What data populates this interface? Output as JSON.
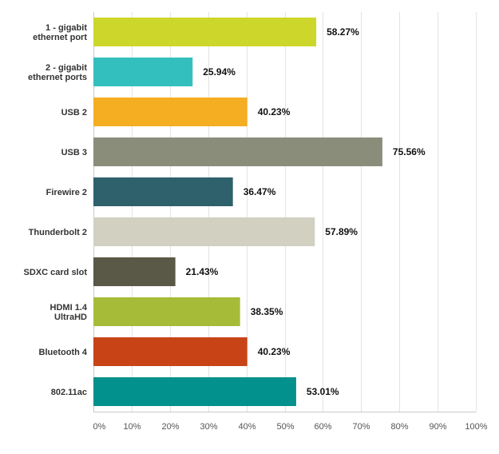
{
  "chart_data": {
    "type": "bar",
    "orientation": "horizontal",
    "title": "",
    "xlabel": "",
    "ylabel": "",
    "xlim": [
      0,
      100
    ],
    "grid": true,
    "value_suffix": "%",
    "ticks": [
      "0%",
      "10%",
      "20%",
      "30%",
      "40%",
      "50%",
      "60%",
      "70%",
      "80%",
      "90%",
      "100%"
    ],
    "categories": [
      [
        "1 - gigabit",
        "ethernet port"
      ],
      [
        "2 - gigabit",
        "ethernet ports"
      ],
      [
        "USB 2"
      ],
      [
        "USB 3"
      ],
      [
        "Firewire 2"
      ],
      [
        "Thunderbolt 2"
      ],
      [
        "SDXC card slot"
      ],
      [
        "HDMI 1.4",
        "UltraHD"
      ],
      [
        "Bluetooth 4"
      ],
      [
        "802.11ac"
      ]
    ],
    "values": [
      58.27,
      25.94,
      40.23,
      75.56,
      36.47,
      57.89,
      21.43,
      38.35,
      40.23,
      53.01
    ],
    "value_labels": [
      "58.27%",
      "25.94%",
      "40.23%",
      "75.56%",
      "36.47%",
      "57.89%",
      "21.43%",
      "38.35%",
      "40.23%",
      "53.01%"
    ],
    "colors": [
      "#cdd62b",
      "#34bfbf",
      "#f5ae22",
      "#8b8d7b",
      "#2e616c",
      "#d2d0c1",
      "#5a5846",
      "#a6bc38",
      "#c84417",
      "#02918c"
    ]
  },
  "style": {
    "grid_color": "#e3e3e3",
    "axis_color": "#c9c9c9"
  }
}
